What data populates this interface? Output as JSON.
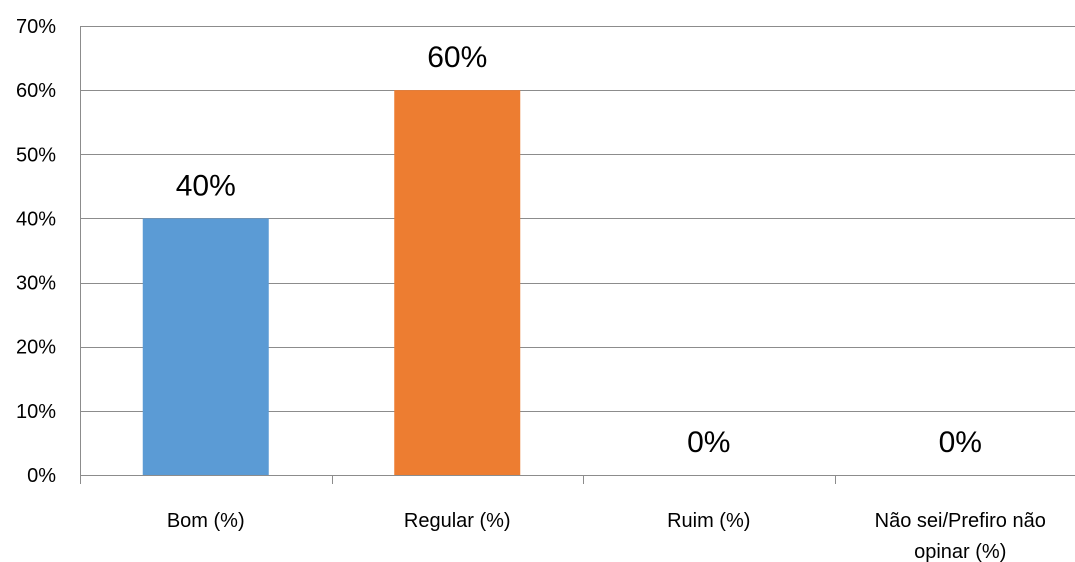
{
  "chart_data": {
    "type": "bar",
    "categories": [
      "Bom (%)",
      "Regular (%)",
      "Ruim (%)",
      "Não sei/Prefiro não opinar (%)"
    ],
    "category_lines": [
      [
        "Bom (%)"
      ],
      [
        "Regular (%)"
      ],
      [
        "Ruim (%)"
      ],
      [
        "Não sei/Prefiro não",
        "opinar (%)"
      ]
    ],
    "values": [
      40,
      60,
      0,
      0
    ],
    "data_labels": [
      "40%",
      "60%",
      "0%",
      "0%"
    ],
    "colors": [
      "#5B9BD5",
      "#ED7D31",
      "#A5A5A5",
      "#FFC000"
    ],
    "ylim": [
      0,
      70
    ],
    "yticks": [
      0,
      10,
      20,
      30,
      40,
      50,
      60,
      70
    ],
    "ytick_labels": [
      "0%",
      "10%",
      "20%",
      "30%",
      "40%",
      "50%",
      "60%",
      "70%"
    ],
    "grid": true,
    "legend": "none",
    "title": "",
    "xlabel": "",
    "ylabel": ""
  }
}
